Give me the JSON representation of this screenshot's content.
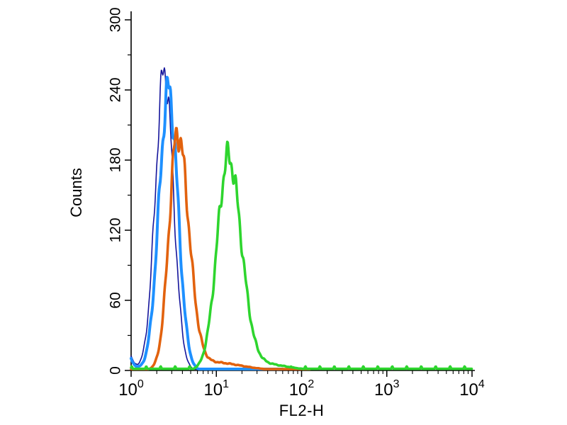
{
  "chart_data": {
    "type": "line",
    "subtype": "flow-cytometry-histogram-overlay",
    "title": "",
    "xlabel": "FL2-H",
    "ylabel": "Counts",
    "x_scale": "log10",
    "x_tick_base": 10,
    "x_tick_exponents": [
      0,
      1,
      2,
      3,
      4
    ],
    "x_range_exponents": [
      0,
      4
    ],
    "ylim": [
      0,
      300
    ],
    "y_ticks": [
      0,
      60,
      120,
      180,
      240,
      300
    ],
    "y_minor_ticks": [
      30,
      90,
      150,
      210,
      270
    ],
    "grid": false,
    "legend": "none",
    "axis_color": "#000000",
    "background_color": "#ffffff",
    "series": [
      {
        "name": "navy-thin-control",
        "color": "#14149b",
        "line_width": 1.6,
        "peak_x": 2.45,
        "peak_y": 256,
        "mu_exp": 0.39,
        "sigma_left": 0.105,
        "sigma_right": 0.105,
        "edge_amp": 12,
        "tail_amp": 0,
        "tail_mu": 0,
        "tail_sigma": 0.3,
        "x_start_exp": 0,
        "x_end_exp": 1.6,
        "baseline": 1.1,
        "baseline_blips": false
      },
      {
        "name": "light-blue-control",
        "color": "#1E90FF",
        "line_width": 4,
        "peak_x": 2.75,
        "peak_y": 240,
        "mu_exp": 0.44,
        "sigma_left": 0.112,
        "sigma_right": 0.108,
        "edge_amp": 10,
        "tail_amp": 0,
        "tail_mu": 0,
        "tail_sigma": 0.3,
        "x_start_exp": 0,
        "x_end_exp": 1.78,
        "baseline": 1.2,
        "baseline_blips": false
      },
      {
        "name": "orange-sample",
        "color": "#e2620e",
        "line_width": 3.6,
        "peak_x": 3.5,
        "peak_y": 200,
        "mu_exp": 0.545,
        "sigma_left": 0.1,
        "sigma_right": 0.13,
        "edge_amp": 0,
        "tail_amp": 7,
        "tail_mu": 0.95,
        "tail_sigma": 0.33,
        "x_start_exp": 0,
        "x_end_exp": 2.1,
        "baseline": 1.2,
        "baseline_blips": false
      },
      {
        "name": "green-sample",
        "color": "#2ed52e",
        "line_width": 3.6,
        "peak_x": 13.8,
        "peak_y": 180,
        "mu_exp": 1.14,
        "sigma_left": 0.13,
        "sigma_right": 0.15,
        "edge_amp": 0,
        "tail_amp": 6,
        "tail_mu": 1.5,
        "tail_sigma": 0.3,
        "x_start_exp": 0,
        "x_end_exp": 4,
        "baseline": 1.4,
        "baseline_blips": true
      }
    ]
  }
}
